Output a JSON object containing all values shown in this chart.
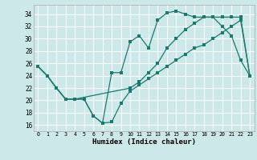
{
  "xlabel": "Humidex (Indice chaleur)",
  "background_color": "#cce8e8",
  "grid_color": "#ffffff",
  "line_color": "#1a7a6e",
  "xlim": [
    -0.5,
    23.5
  ],
  "ylim": [
    15,
    35.5
  ],
  "yticks": [
    16,
    18,
    20,
    22,
    24,
    26,
    28,
    30,
    32,
    34
  ],
  "xticks": [
    0,
    1,
    2,
    3,
    4,
    5,
    6,
    7,
    8,
    9,
    10,
    11,
    12,
    13,
    14,
    15,
    16,
    17,
    18,
    19,
    20,
    21,
    22,
    23
  ],
  "line1_x": [
    0,
    1,
    2,
    3,
    4,
    5,
    6,
    7,
    8,
    9,
    10,
    11,
    12,
    13,
    14,
    15,
    16,
    17,
    18,
    19,
    20,
    21,
    22,
    23
  ],
  "line1_y": [
    25.5,
    24.0,
    22.0,
    20.2,
    20.2,
    20.2,
    17.5,
    16.3,
    16.5,
    19.5,
    21.5,
    22.5,
    23.5,
    24.5,
    25.5,
    26.5,
    27.5,
    28.5,
    29.0,
    30.0,
    31.0,
    32.0,
    33.0,
    24.0
  ],
  "line2_x": [
    0,
    1,
    2,
    3,
    4,
    5,
    6,
    7,
    8,
    9,
    10,
    11,
    12,
    13,
    14,
    15,
    16,
    17,
    18,
    19,
    20,
    21,
    22,
    23
  ],
  "line2_y": [
    25.5,
    24.0,
    22.0,
    20.2,
    20.2,
    20.2,
    17.5,
    16.3,
    24.5,
    24.5,
    29.5,
    30.5,
    28.5,
    33.0,
    34.2,
    34.5,
    34.0,
    33.5,
    33.5,
    33.5,
    32.0,
    30.5,
    26.5,
    24.0
  ],
  "line3_x": [
    0,
    1,
    2,
    3,
    4,
    10,
    11,
    12,
    13,
    14,
    15,
    16,
    17,
    18,
    19,
    20,
    21,
    22,
    23
  ],
  "line3_y": [
    25.5,
    24.0,
    22.0,
    20.2,
    20.2,
    22.0,
    23.0,
    24.5,
    26.0,
    28.5,
    30.0,
    31.5,
    32.5,
    33.5,
    33.5,
    33.5,
    33.5,
    33.5,
    24.0
  ]
}
